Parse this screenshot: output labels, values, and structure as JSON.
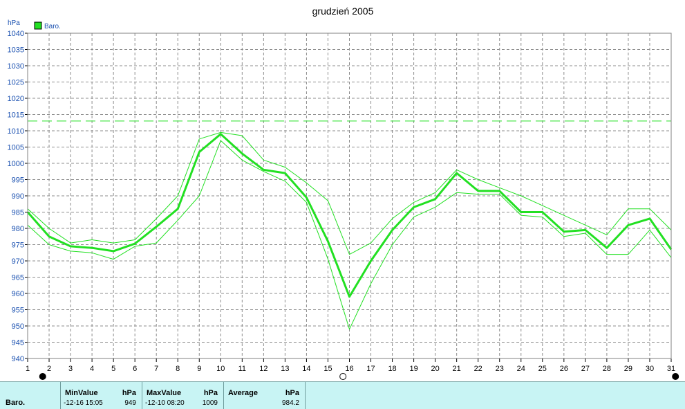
{
  "chart_data": {
    "type": "line",
    "title": "grudzień 2005",
    "ylabel": "hPa",
    "ylim": [
      940,
      1040
    ],
    "yticks": [
      940,
      945,
      950,
      955,
      960,
      965,
      970,
      975,
      980,
      985,
      990,
      995,
      1000,
      1005,
      1010,
      1015,
      1020,
      1025,
      1030,
      1035,
      1040
    ],
    "x": [
      1,
      2,
      3,
      4,
      5,
      6,
      7,
      8,
      9,
      10,
      11,
      12,
      13,
      14,
      15,
      16,
      17,
      18,
      19,
      20,
      21,
      22,
      23,
      24,
      25,
      26,
      27,
      28,
      29,
      30,
      31
    ],
    "reference_line": 1013,
    "legend": {
      "label": "Baro.",
      "placement": "top-left"
    },
    "series": [
      {
        "name": "Baro.",
        "role": "average",
        "values": [
          985,
          977.5,
          974.5,
          974,
          973,
          975.3,
          980.5,
          986,
          1003.5,
          1009,
          1003,
          998,
          997,
          989.5,
          976,
          959,
          970,
          979.5,
          986.5,
          989,
          997,
          991.5,
          991.5,
          985,
          985,
          979,
          979.5,
          974,
          981,
          983,
          973.5
        ]
      },
      {
        "role": "max",
        "values": [
          986,
          980,
          975.5,
          976.5,
          975.5,
          976.5,
          983,
          990,
          1007.5,
          1009.5,
          1008.5,
          1001,
          998.8,
          994,
          988.5,
          972,
          975.5,
          983,
          988,
          991,
          998,
          995,
          992.5,
          990,
          987,
          984,
          981,
          978,
          986,
          986,
          979.5
        ]
      },
      {
        "role": "min",
        "values": [
          981,
          975,
          973,
          972.5,
          970.5,
          974.5,
          975.5,
          982.5,
          990,
          1007,
          1001,
          997.5,
          994.5,
          988,
          970.5,
          949,
          963,
          975,
          983.5,
          986.5,
          991,
          990.5,
          990.5,
          984,
          983.5,
          977.5,
          978.5,
          972,
          972,
          979.5,
          971
        ]
      }
    ],
    "markers": [
      {
        "x": 1.7,
        "fill": "#000000"
      },
      {
        "x": 15.7,
        "fill": "#ffffff"
      },
      {
        "x": 31.2,
        "fill": "#000000"
      }
    ],
    "grid": true,
    "colors": {
      "series": "#22e022",
      "grid": "#8c8c8c",
      "axis_text": "#1a50b0",
      "panel": "#c8f4f4"
    }
  },
  "summary": {
    "series_label": "Baro.",
    "min": {
      "header": "MinValue",
      "unit": "hPa",
      "time": "-12-16  15:05",
      "value": "949"
    },
    "max": {
      "header": "MaxValue",
      "unit": "hPa",
      "time": "-12-10  08:20",
      "value": "1009"
    },
    "avg": {
      "header": "Average",
      "unit": "hPa",
      "value": "984.2"
    }
  }
}
